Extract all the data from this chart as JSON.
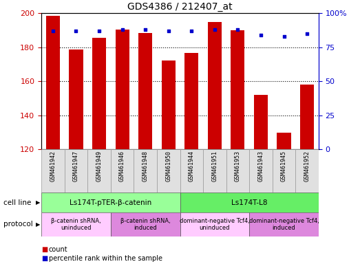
{
  "title": "GDS4386 / 212407_at",
  "samples": [
    "GSM461942",
    "GSM461947",
    "GSM461949",
    "GSM461946",
    "GSM461948",
    "GSM461950",
    "GSM461944",
    "GSM461951",
    "GSM461953",
    "GSM461943",
    "GSM461945",
    "GSM461952"
  ],
  "counts": [
    198.5,
    178.5,
    185.5,
    190.5,
    188.5,
    172.0,
    176.5,
    195.0,
    190.0,
    152.0,
    129.5,
    158.0
  ],
  "percentiles": [
    87,
    87,
    87,
    88,
    88,
    87,
    87,
    88,
    88,
    84,
    83,
    85
  ],
  "ylim_left": [
    120,
    200
  ],
  "ylim_right": [
    0,
    100
  ],
  "yticks_left": [
    120,
    140,
    160,
    180,
    200
  ],
  "yticks_right": [
    0,
    25,
    50,
    75,
    100
  ],
  "bar_color": "#cc0000",
  "dot_color": "#0000cc",
  "bar_bottom": 120,
  "cell_line_groups": [
    {
      "label": "Ls174T-pTER-β-catenin",
      "start": 0,
      "end": 6,
      "color": "#99ff99"
    },
    {
      "label": "Ls174T-L8",
      "start": 6,
      "end": 12,
      "color": "#66ee66"
    }
  ],
  "protocol_groups": [
    {
      "label": "β-catenin shRNA,\nuninduced",
      "start": 0,
      "end": 3,
      "color": "#ffccff"
    },
    {
      "label": "β-catenin shRNA,\ninduced",
      "start": 3,
      "end": 6,
      "color": "#dd88dd"
    },
    {
      "label": "dominant-negative Tcf4,\nuninduced",
      "start": 6,
      "end": 9,
      "color": "#ffccff"
    },
    {
      "label": "dominant-negative Tcf4,\ninduced",
      "start": 9,
      "end": 12,
      "color": "#dd88dd"
    }
  ],
  "cell_line_label": "cell line",
  "protocol_label": "protocol",
  "legend_count_label": "count",
  "legend_percentile_label": "percentile rank within the sample",
  "background_color": "#ffffff",
  "grid_color": "#000000",
  "tick_color_left": "#cc0000",
  "tick_color_right": "#0000cc"
}
